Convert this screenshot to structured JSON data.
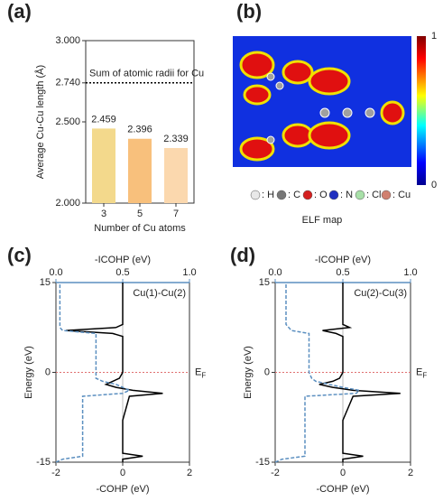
{
  "chart_data": [
    {
      "type": "bar",
      "panel_label": "(a)",
      "ylabel": "Average Cu-Cu length (Å)",
      "xlabel": "Number of Cu atoms",
      "categories": [
        "3",
        "5",
        "7"
      ],
      "values": [
        2.459,
        2.396,
        2.339
      ],
      "colors": [
        "#f3d98c",
        "#f8c07c",
        "#fbd8ae"
      ],
      "ylim": [
        2.0,
        3.0
      ],
      "yticks": [
        {
          "value": 2.0,
          "label": "2.000"
        },
        {
          "value": 2.5,
          "label": "2.500"
        },
        {
          "value": 2.74,
          "label": "2.740"
        },
        {
          "value": 3.0,
          "label": "3.000"
        }
      ],
      "reference_line": {
        "value": 2.74,
        "label": "Sum of atomic radii for Cu"
      }
    },
    {
      "type": "image",
      "panel_label": "(b)",
      "xlabel": "ELF map",
      "colorbar_ticks": [
        0,
        1
      ],
      "atoms": [
        {
          "label": ": H",
          "color": "#e8e8e8"
        },
        {
          "label": ": C",
          "color": "#777777"
        },
        {
          "label": ": O",
          "color": "#d42020"
        },
        {
          "label": ": N",
          "color": "#2030c0"
        },
        {
          "label": ": Cl",
          "color": "#a8e0a8"
        },
        {
          "label": ": Cu",
          "color": "#d08070"
        }
      ]
    },
    {
      "type": "line",
      "panel_label": "(c)",
      "annotation": "Cu(1)-Cu(2)",
      "xlabel": "-COHP (eV)",
      "x2label": "-ICOHP (eV)",
      "ylabel": "Energy (eV)",
      "fermi_label": "E",
      "fermi_sub": "F",
      "xlim": [
        -2,
        2
      ],
      "xticks": [
        -2,
        0,
        2
      ],
      "x2lim": [
        0,
        1
      ],
      "x2ticks": [
        {
          "value": 0,
          "label": "0.0"
        },
        {
          "value": 0.5,
          "label": "0.5"
        },
        {
          "value": 1,
          "label": "1.0"
        }
      ],
      "ylim": [
        -15,
        15
      ],
      "yticks": [
        -15,
        0,
        15
      ],
      "y": [
        -15,
        -14.5,
        -14,
        -13.5,
        -8,
        -4,
        -3.5,
        -3,
        -2.5,
        -2,
        -1.5,
        -1,
        0,
        6,
        6.5,
        7,
        7.5,
        8,
        15
      ],
      "series": [
        {
          "color": "#000000",
          "values": [
            0,
            0,
            0.6,
            0,
            0,
            0.2,
            1.2,
            0.3,
            -0.2,
            -0.5,
            -0.3,
            -0.1,
            0,
            0,
            -0.3,
            -1.7,
            -0.2,
            0,
            0
          ]
        },
        {
          "color": "#5b8fc0",
          "axis": "x2",
          "dashed": true,
          "values": [
            0,
            0.05,
            0.2,
            0.2,
            0.2,
            0.2,
            0.5,
            0.55,
            0.5,
            0.45,
            0.35,
            0.3,
            0.3,
            0.3,
            0.3,
            0.05,
            0.03,
            0.03,
            0.03
          ]
        }
      ]
    },
    {
      "type": "line",
      "panel_label": "(d)",
      "annotation": "Cu(2)-Cu(3)",
      "xlabel": "-COHP (eV)",
      "x2label": "-ICOHP (eV)",
      "ylabel": "Energy (eV)",
      "fermi_label": "E",
      "fermi_sub": "F",
      "xlim": [
        -2,
        2
      ],
      "xticks": [
        -2,
        0,
        2
      ],
      "x2lim": [
        0,
        1
      ],
      "x2ticks": [
        {
          "value": 0,
          "label": "0.0"
        },
        {
          "value": 0.5,
          "label": "0.5"
        },
        {
          "value": 1,
          "label": "1.0"
        }
      ],
      "ylim": [
        -15,
        15
      ],
      "yticks": [
        -15,
        0,
        15
      ],
      "y": [
        -15,
        -14.5,
        -14,
        -13.5,
        -8,
        -4,
        -3.5,
        -3,
        -2.5,
        -2,
        -1.5,
        -1,
        0,
        6,
        6.5,
        7,
        7.5,
        8,
        15
      ],
      "series": [
        {
          "color": "#000000",
          "values": [
            0,
            0,
            0.6,
            0,
            0,
            0.3,
            1.7,
            0.3,
            -0.3,
            -0.7,
            -0.3,
            -0.1,
            0,
            0,
            -0.2,
            -0.6,
            0.2,
            0,
            0
          ]
        },
        {
          "color": "#5b8fc0",
          "axis": "x2",
          "dashed": true,
          "values": [
            0,
            0.05,
            0.22,
            0.22,
            0.22,
            0.22,
            0.6,
            0.62,
            0.5,
            0.4,
            0.3,
            0.27,
            0.25,
            0.25,
            0.25,
            0.12,
            0.1,
            0.08,
            0.08
          ]
        }
      ]
    }
  ]
}
